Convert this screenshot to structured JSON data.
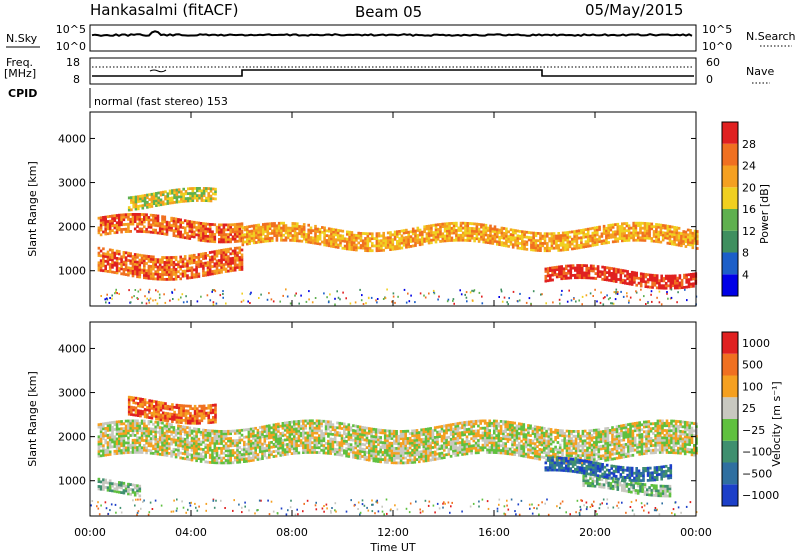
{
  "header": {
    "station": "Hankasalmi (fitACF)",
    "beam": "Beam 05",
    "date": "05/May/2015"
  },
  "panels": {
    "nsky": {
      "left_label": "N.Sky",
      "left_ticks": [
        "10^5",
        "10^0"
      ],
      "right_ticks": [
        "10^5",
        "10^0"
      ],
      "right_label": "N.Search"
    },
    "freq": {
      "left_label_1": "Freq.",
      "left_label_2": "[MHz]",
      "left_ticks": [
        "18",
        "8"
      ],
      "right_ticks": [
        "60",
        "0"
      ],
      "right_label": "Nave"
    },
    "cpid": {
      "label": "CPID",
      "text": "normal (fast stereo) 153"
    }
  },
  "chart_data": [
    {
      "type": "heatmap",
      "name": "power",
      "ylabel": "Slant Range [km]",
      "yticks": [
        1000,
        2000,
        3000,
        4000
      ],
      "ylim": [
        200,
        4600
      ],
      "xlabel": "Time UT",
      "xticks": [
        "00:00",
        "04:00",
        "08:00",
        "12:00",
        "16:00",
        "20:00",
        "00:00"
      ],
      "xlim_hours": [
        0,
        24
      ],
      "colorbar": {
        "label": "Power [dB]",
        "ticks": [
          "4",
          "8",
          "12",
          "16",
          "20",
          "24",
          "28"
        ],
        "colors": [
          "#0000e6",
          "#1c5fc8",
          "#3f8f5f",
          "#5fb04f",
          "#f0d020",
          "#f5a020",
          "#f07020",
          "#e02020"
        ]
      },
      "bands": [
        {
          "t": [
            0.3,
            6.0
          ],
          "r": [
            1750,
            2150
          ],
          "level": 6
        },
        {
          "t": [
            6.0,
            24.0
          ],
          "r": [
            1550,
            1950
          ],
          "level": 5
        },
        {
          "t": [
            0.3,
            6.0
          ],
          "r": [
            900,
            1400
          ],
          "level": 6
        },
        {
          "t": [
            18.0,
            24.0
          ],
          "r": [
            700,
            1000
          ],
          "level": 7
        },
        {
          "t": [
            1.5,
            5.0
          ],
          "r": [
            2450,
            2750
          ],
          "level": 4
        }
      ]
    },
    {
      "type": "heatmap",
      "name": "velocity",
      "ylabel": "Slant Range [km]",
      "yticks": [
        1000,
        2000,
        3000,
        4000
      ],
      "ylim": [
        200,
        4600
      ],
      "xlabel": "Time UT",
      "xticks": [
        "00:00",
        "04:00",
        "08:00",
        "12:00",
        "16:00",
        "20:00",
        "00:00"
      ],
      "xlim_hours": [
        0,
        24
      ],
      "colorbar": {
        "label": "Velocity [m s⁻¹]",
        "ticks": [
          "1000",
          "500",
          "100",
          "25",
          "−25",
          "−100",
          "−500",
          "−1000"
        ],
        "colors": [
          "#1c3fc8",
          "#2f6fa0",
          "#3f8f6f",
          "#5fc03f",
          "#c8c8c0",
          "#f5a020",
          "#f07020",
          "#e02020"
        ]
      },
      "bands": [
        {
          "t": [
            0.3,
            24.0
          ],
          "r": [
            1500,
            2250
          ],
          "level": 4
        },
        {
          "t": [
            1.5,
            5.0
          ],
          "r": [
            2400,
            2800
          ],
          "level": 6
        },
        {
          "t": [
            0.3,
            2.0
          ],
          "r": [
            700,
            950
          ],
          "level": 3
        },
        {
          "t": [
            19.5,
            23.0
          ],
          "r": [
            750,
            1000
          ],
          "level": 3
        },
        {
          "t": [
            18.0,
            23.0
          ],
          "r": [
            1100,
            1400
          ],
          "level": 1
        }
      ]
    }
  ]
}
